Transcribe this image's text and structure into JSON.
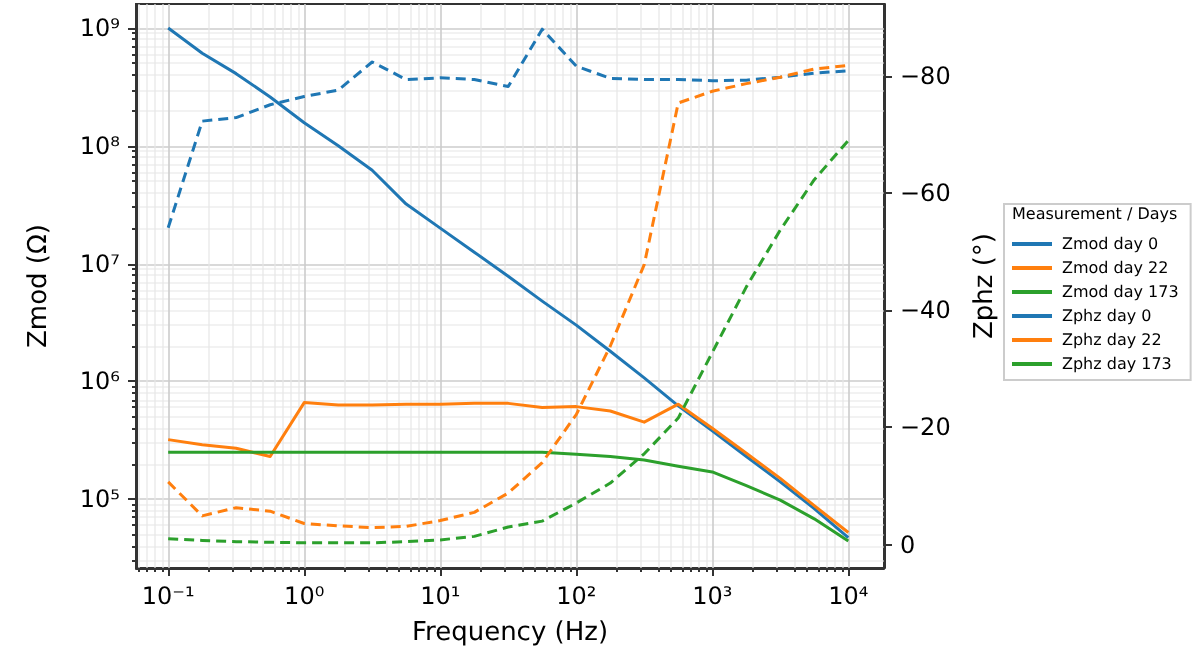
{
  "chart_data": {
    "type": "line",
    "xlabel": "Frequency (Hz)",
    "ylabel": "Zmod (Ω)",
    "y2label": "Zphz (°)",
    "legend_title": "Measurement / Days",
    "legend": "right",
    "grid": true,
    "log": "xy",
    "marker": "none",
    "x": [
      0.1,
      0.178,
      0.316,
      0.562,
      1,
      1.78,
      3.16,
      5.62,
      10,
      17.8,
      31.6,
      56.2,
      100,
      178,
      316,
      562,
      1000,
      1780,
      3160,
      5620,
      10000
    ],
    "xlim": [
      0.058,
      18300
    ],
    "xticks": [
      {
        "value": 0.1,
        "label": "10⁻¹"
      },
      {
        "value": 1,
        "label": "10⁰"
      },
      {
        "value": 10,
        "label": "10¹"
      },
      {
        "value": 100,
        "label": "10²"
      },
      {
        "value": 1000,
        "label": "10³"
      },
      {
        "value": 10000,
        "label": "10⁴"
      }
    ],
    "ylim": [
      26000,
      1600000000
    ],
    "yticks": [
      {
        "value": 100000,
        "label": "10⁵"
      },
      {
        "value": 1000000,
        "label": "10⁶"
      },
      {
        "value": 10000000,
        "label": "10⁷"
      },
      {
        "value": 100000000,
        "label": "10⁸"
      },
      {
        "value": 1000000000,
        "label": "10⁹"
      }
    ],
    "y2lim": [
      4,
      -92.3
    ],
    "y2ticks": [
      0,
      {
        "value": -20,
        "label": "−20"
      },
      {
        "value": -40,
        "label": "−40"
      },
      {
        "value": -60,
        "label": "−60"
      },
      {
        "value": -80,
        "label": "−80"
      }
    ],
    "series": [
      {
        "name": "Zmod day 0",
        "color": "#1f77b4",
        "line_style": "solid",
        "values": [
          1000000000,
          610000000,
          410000000,
          260000000,
          157000000,
          100000000,
          62000000,
          32000000,
          20000000,
          12500000,
          7800000,
          4800000,
          3000000,
          1800000,
          1070000,
          620000,
          380000,
          230000,
          140000,
          83000,
          47000
        ]
      },
      {
        "name": "Zmod day 22",
        "color": "#ff7f0e",
        "line_style": "solid",
        "values": [
          320000,
          290000,
          270000,
          230000,
          660000,
          630000,
          630000,
          640000,
          640000,
          650000,
          650000,
          600000,
          610000,
          560000,
          450000,
          640000,
          400000,
          245000,
          150000,
          88000,
          52000
        ]
      },
      {
        "name": "Zmod day 173",
        "color": "#2ca02c",
        "line_style": "solid",
        "values": [
          250000,
          250000,
          250000,
          250000,
          250000,
          250000,
          250000,
          250000,
          250000,
          250000,
          250000,
          250000,
          240000,
          230000,
          215000,
          190000,
          170000,
          130000,
          98000,
          68000,
          44000
        ]
      },
      {
        "name": "Zphz day 0",
        "color": "#1f77b4",
        "line_style": "dashed",
        "axis": "y2",
        "values": [
          -54.1,
          -72.3,
          -72.9,
          -75.1,
          -76.5,
          -77.6,
          -82.4,
          -79.4,
          -79.7,
          -79.4,
          -78.2,
          -88.0,
          -81.7,
          -79.6,
          -79.4,
          -79.4,
          -79.2,
          -79.3,
          -79.8,
          -80.5,
          -80.9
        ]
      },
      {
        "name": "Zphz day 22",
        "color": "#ff7f0e",
        "line_style": "dashed",
        "axis": "y2",
        "values": [
          -10.7,
          -4.9,
          -6.3,
          -5.7,
          -3.6,
          -3.2,
          -2.9,
          -3.1,
          -4.1,
          -5.5,
          -8.8,
          -14.0,
          -22.2,
          -33.9,
          -47.8,
          -75.4,
          -77.4,
          -78.7,
          -79.8,
          -81.2,
          -81.8
        ]
      },
      {
        "name": "Zphz day 173",
        "color": "#2ca02c",
        "line_style": "dashed",
        "axis": "y2",
        "values": [
          -1.0,
          -0.7,
          -0.5,
          -0.4,
          -0.3,
          -0.3,
          -0.3,
          -0.5,
          -0.8,
          -1.4,
          -3.0,
          -4.0,
          -7.1,
          -10.5,
          -15.5,
          -21.6,
          -32.8,
          -44.0,
          -53.7,
          -62.3,
          -69.0
        ]
      }
    ]
  }
}
